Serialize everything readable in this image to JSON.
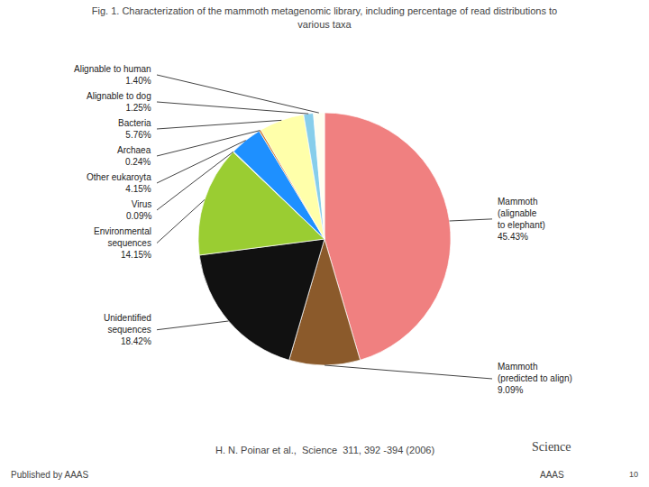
{
  "chart_data": {
    "type": "pie",
    "title": "Fig. 1. Characterization of the mammoth metagenomic library, including percentage of read distributions to\nvarious taxa",
    "categories": [
      "Mammoth\n(alignable\nto elephant)",
      "Mammoth\n(predicted to align)",
      "Unidentified\nsequences",
      "Environmental\nsequences",
      "Virus",
      "Other eukaroyta",
      "Archaea",
      "Bacteria",
      "Alignable to dog",
      "Alignable to human"
    ],
    "values": [
      45.43,
      9.09,
      18.42,
      14.15,
      0.09,
      4.15,
      0.24,
      5.76,
      1.25,
      1.4
    ],
    "value_labels": [
      "45.43%",
      "9.09%",
      "18.42%",
      "14.15%",
      "0.09%",
      "4.15%",
      "0.24%",
      "5.76%",
      "1.25%",
      "1.40%"
    ],
    "colors": [
      "#F08080",
      "#8B5A2B",
      "#111111",
      "#9ACD32",
      "#F0F0D0",
      "#1E90FF",
      "#CC7722",
      "#FFFFAA",
      "#87CEEB",
      "#FFFFF0"
    ],
    "data_labels": true,
    "annotations": [
      "H. N. Poinar et al.,  Science  311, 392 -394 (2006)",
      "Published by AAAS",
      "Science",
      "AAAS",
      "10"
    ]
  }
}
